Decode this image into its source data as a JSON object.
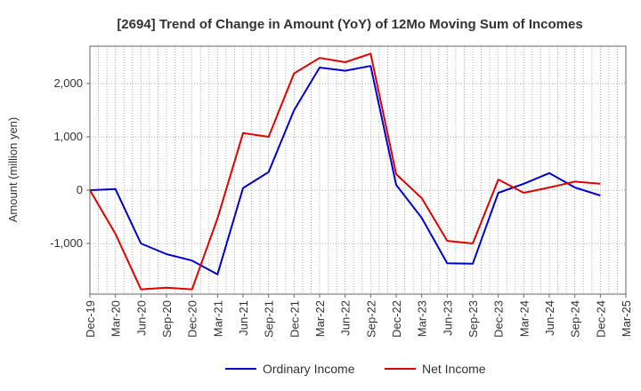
{
  "chart_data": {
    "type": "line",
    "title": "[2694]  Trend of Change in Amount (YoY) of 12Mo Moving Sum of Incomes",
    "ylabel": "Amount (million yen)",
    "xlabel": "",
    "x_ticks": [
      "Dec-19",
      "Mar-20",
      "Jun-20",
      "Sep-20",
      "Dec-20",
      "Mar-21",
      "Jun-21",
      "Sep-21",
      "Dec-21",
      "Mar-22",
      "Jun-22",
      "Sep-22",
      "Dec-22",
      "Mar-23",
      "Jun-23",
      "Sep-23",
      "Dec-23",
      "Mar-24",
      "Jun-24",
      "Sep-24",
      "Dec-24",
      "Mar-25"
    ],
    "y_ticks": [
      {
        "value": 2000,
        "label": "2,000"
      },
      {
        "value": 1000,
        "label": "1,000"
      },
      {
        "value": 0,
        "label": "0"
      },
      {
        "value": -1000,
        "label": "-1,000"
      }
    ],
    "ylim": [
      -1950,
      2700
    ],
    "grid": true,
    "legend_position": "bottom",
    "series": [
      {
        "name": "Ordinary Income",
        "color": "#0000cc",
        "values": [
          0,
          20,
          -1000,
          -1200,
          -1320,
          -1580,
          40,
          340,
          1500,
          2300,
          2240,
          2330,
          100,
          -520,
          -1370,
          -1380,
          -50,
          120,
          320,
          50,
          -100
        ]
      },
      {
        "name": "Net Income",
        "color": "#dd0000",
        "values": [
          0,
          -820,
          -1860,
          -1830,
          -1860,
          -530,
          1070,
          1000,
          2190,
          2480,
          2400,
          2560,
          300,
          -150,
          -950,
          -1000,
          200,
          -50,
          50,
          160,
          120
        ]
      }
    ]
  }
}
